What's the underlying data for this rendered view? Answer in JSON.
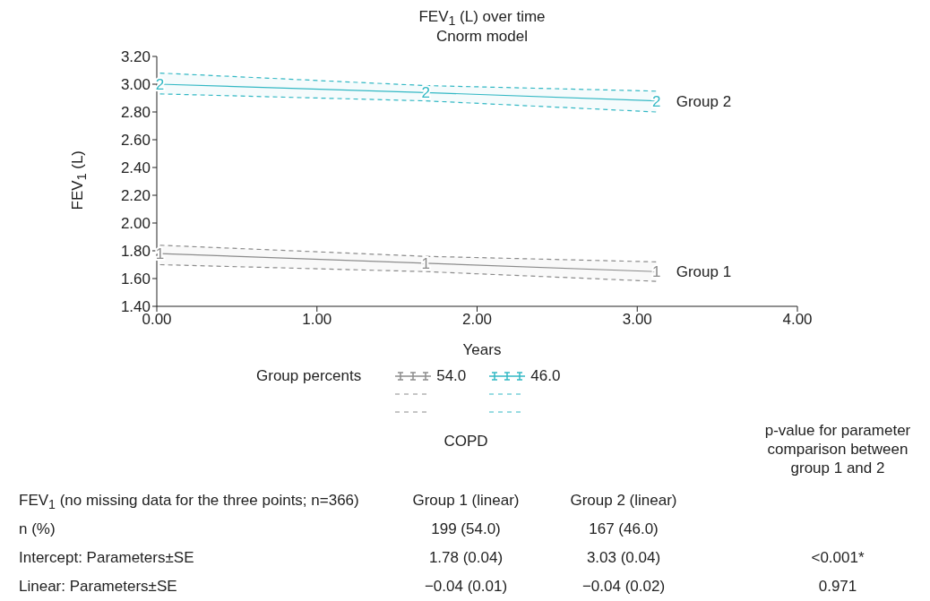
{
  "chart_data": {
    "type": "line",
    "title": "FEV$_{1}$ (L) over time",
    "subtitle": "Cnorm model",
    "xlabel": "Years",
    "ylabel": "FEV$_{1}$ (L)",
    "legend_title": "Group percents",
    "legend": "bottom",
    "x": [
      0.02,
      1.68,
      3.12
    ],
    "series": [
      {
        "name": "54.0",
        "color": "#8c8c8c",
        "values": [
          1.78,
          1.71,
          1.65
        ],
        "lower": [
          1.7,
          1.65,
          1.58
        ],
        "upper": [
          1.84,
          1.76,
          1.72
        ]
      },
      {
        "name": "46.0",
        "color": "#33b8c4",
        "values": [
          3.0,
          2.94,
          2.88
        ],
        "lower": [
          2.93,
          2.88,
          2.8
        ],
        "upper": [
          3.08,
          2.99,
          2.95
        ]
      }
    ],
    "xlim": [
      0,
      4
    ],
    "xticks": [
      {
        "value": 0,
        "label": "0.00"
      },
      {
        "value": 1,
        "label": "1.00"
      },
      {
        "value": 2,
        "label": "2.00"
      },
      {
        "value": 3,
        "label": "3.00"
      },
      {
        "value": 4,
        "label": "4.00"
      }
    ],
    "ylim": [
      1.4,
      3.2
    ],
    "yticks": [
      {
        "value": 1.4,
        "label": "1.40"
      },
      {
        "value": 1.6,
        "label": "1.60"
      },
      {
        "value": 1.8,
        "label": "1.80"
      },
      {
        "value": 2.0,
        "label": "2.00"
      },
      {
        "value": 2.2,
        "label": "2.20"
      },
      {
        "value": 2.4,
        "label": "2.40"
      },
      {
        "value": 2.6,
        "label": "2.60"
      },
      {
        "value": 2.8,
        "label": "2.80"
      },
      {
        "value": 3.0,
        "label": "3.00"
      },
      {
        "value": 3.2,
        "label": "3.20"
      }
    ],
    "annotations": [
      {
        "text": "1",
        "x": 0.02,
        "y": 1.78
      },
      {
        "text": "1",
        "x": 1.68,
        "y": 1.71
      },
      {
        "text": "1",
        "x": 3.12,
        "y": 1.65
      },
      {
        "text": "2",
        "x": 0.02,
        "y": 3.0
      },
      {
        "text": "2",
        "x": 1.68,
        "y": 2.94
      },
      {
        "text": "2",
        "x": 3.12,
        "y": 2.88
      },
      {
        "text": "Group 1",
        "x": 3.12,
        "y": 1.65
      },
      {
        "text": "Group 2",
        "x": 3.12,
        "y": 2.88
      },
      "COPD",
      "p-value for parameter comparison between group 1 and 2",
      "FEV$_{1}$ (no missing data for the three points; n=366)",
      "Group 1 (linear)",
      "Group 2 (linear)",
      "n (%)",
      "199 (54.0)",
      "167 (46.0)",
      "Intercept: Parameters±SE",
      "1.78 (0.04)",
      "3.03 (0.04)",
      "<0.001*",
      "Linear: Parameters±SE",
      "−0.04 (0.01)",
      "−0.04 (0.02)",
      "0.971"
    ]
  }
}
